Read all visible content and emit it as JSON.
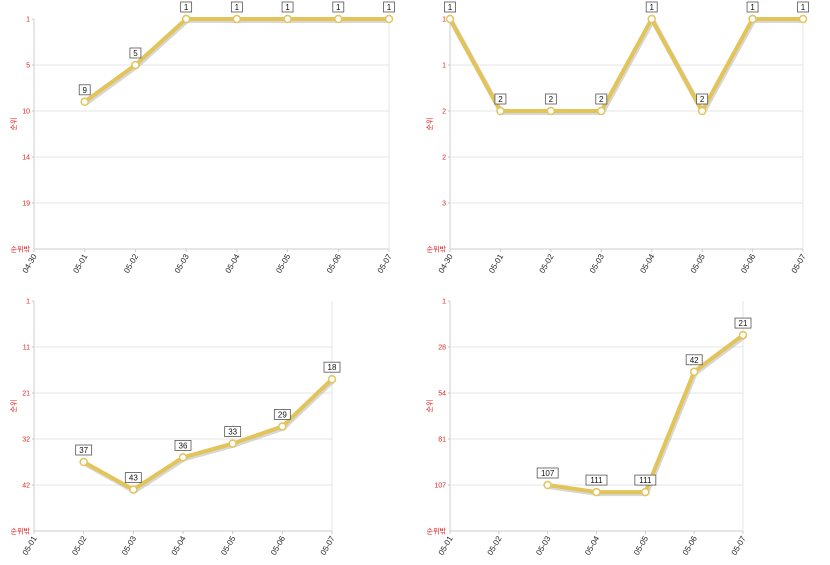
{
  "colors": {
    "line": "#e2c458",
    "line_shadow": "#bdbdbd",
    "marker_fill": "#ffffff",
    "grid": "#e6e6e6",
    "axis": "#cccccc",
    "tick_y": "#e02020",
    "label_box_border": "#555555"
  },
  "chart_data": [
    {
      "type": "line",
      "ylabel": "순위",
      "y_bottom_label": "순위밖",
      "y_reversed": true,
      "yticks": [
        "1",
        "5",
        "10",
        "14",
        "19"
      ],
      "categories": [
        "04-30",
        "05-01",
        "05-02",
        "05-03",
        "05-04",
        "05-05",
        "05-06",
        "05-07"
      ],
      "series": [
        {
          "values": [
            null,
            9,
            5,
            1,
            1,
            1,
            1,
            1
          ]
        }
      ]
    },
    {
      "type": "line",
      "ylabel": "순위",
      "y_bottom_label": "순위밖",
      "y_reversed": true,
      "yticks": [
        "1",
        "1",
        "2",
        "2",
        "3"
      ],
      "categories": [
        "04-30",
        "05-01",
        "05-02",
        "05-03",
        "05-04",
        "05-05",
        "05-06",
        "05-07"
      ],
      "series": [
        {
          "values": [
            1,
            2,
            2,
            2,
            1,
            2,
            1,
            1
          ]
        }
      ]
    },
    {
      "type": "line",
      "ylabel": "순위",
      "y_bottom_label": "순위밖",
      "y_reversed": true,
      "yticks": [
        "1",
        "11",
        "21",
        "32",
        "42"
      ],
      "categories": [
        "05-01",
        "05-02",
        "05-03",
        "05-04",
        "05-05",
        "05-06",
        "05-07"
      ],
      "series": [
        {
          "values": [
            null,
            37,
            43,
            36,
            33,
            29,
            18
          ]
        }
      ]
    },
    {
      "type": "line",
      "ylabel": "순위",
      "y_bottom_label": "순위밖",
      "y_reversed": true,
      "yticks": [
        "1",
        "28",
        "54",
        "81",
        "107"
      ],
      "categories": [
        "05-01",
        "05-02",
        "05-03",
        "05-04",
        "05-05",
        "05-06",
        "05-07"
      ],
      "series": [
        {
          "values": [
            null,
            null,
            107,
            111,
            111,
            42,
            21
          ]
        }
      ]
    }
  ]
}
